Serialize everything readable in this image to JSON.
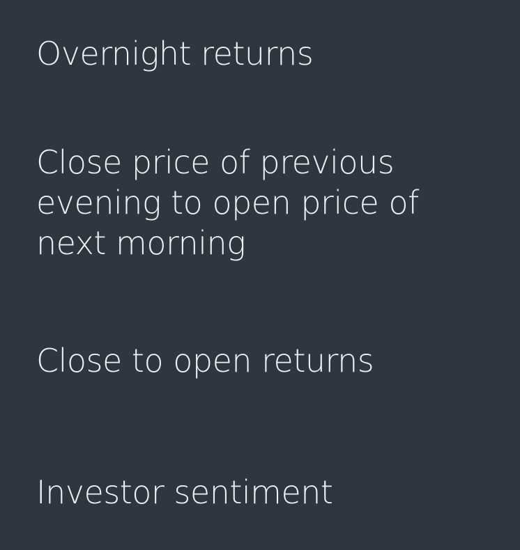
{
  "slide": {
    "background": "#2e3640",
    "text_color": "#eef1f4",
    "items": [
      {
        "lines": [
          "Overnight returns"
        ]
      },
      {
        "lines": [
          "Close price of previous",
          "evening to open price of",
          "next morning"
        ]
      },
      {
        "lines": [
          "Close to open returns"
        ]
      },
      {
        "lines": [
          "Investor sentiment"
        ]
      }
    ]
  }
}
